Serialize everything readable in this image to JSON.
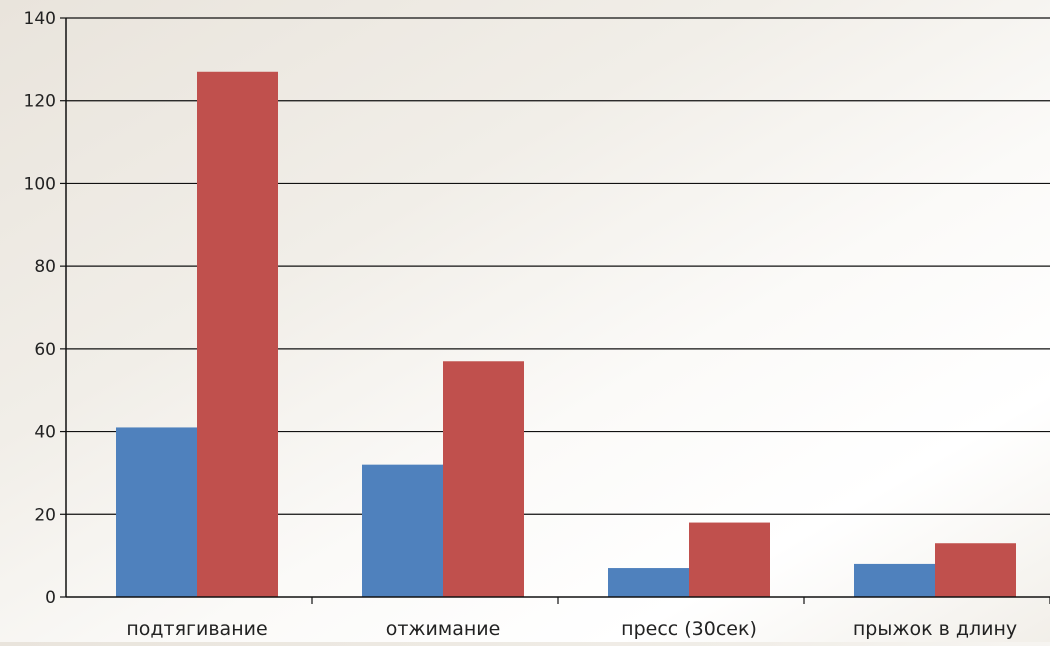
{
  "chart_data": {
    "type": "bar",
    "title": "",
    "xlabel": "",
    "ylabel": "",
    "categories": [
      "подтягивание",
      "отжимание",
      "пресс (30сек)",
      "прыжок в длину"
    ],
    "series": [
      {
        "values": [
          41,
          32,
          7,
          8
        ],
        "color": "#4f81bd"
      },
      {
        "values": [
          127,
          57,
          18,
          13
        ],
        "color": "#c0504d"
      }
    ],
    "ylim": [
      0,
      140
    ],
    "yticks": [
      0,
      20,
      40,
      60,
      80,
      100,
      120,
      140
    ],
    "grid": true,
    "legend": "none"
  }
}
